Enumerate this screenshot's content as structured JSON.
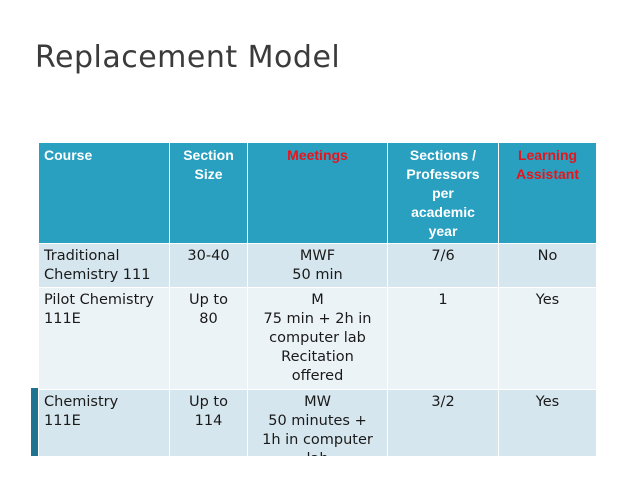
{
  "slide": {
    "title": "Replacement Model"
  },
  "colors": {
    "header_bg": "#2aa0c1",
    "header_text": "#ffffff",
    "header_highlight_text": "#e8141c",
    "row_band_dark": "#d6e6ee",
    "row_band_light": "#ecf3f7",
    "accent_bar": "#1f7391"
  },
  "table": {
    "headers": [
      {
        "lines": [
          "Course"
        ]
      },
      {
        "lines": [
          "Section",
          "Size"
        ]
      },
      {
        "lines": [
          "Meetings"
        ]
      },
      {
        "lines": [
          "Sections /",
          "Professors",
          "per",
          "academic",
          "year"
        ]
      },
      {
        "lines": [
          "Learning",
          "Assistant"
        ]
      }
    ],
    "rows": [
      {
        "course": [
          "Traditional",
          "Chemistry 111"
        ],
        "size": [
          "30-40"
        ],
        "meetings": [
          "MWF",
          "50 min"
        ],
        "sections": [
          "7/6"
        ],
        "assistant": [
          "No"
        ]
      },
      {
        "course": [
          "Pilot Chemistry",
          "111E"
        ],
        "size": [
          "Up to",
          "80"
        ],
        "meetings": [
          "M",
          "75 min + 2h in",
          "computer lab",
          "Recitation",
          "offered"
        ],
        "sections": [
          "1"
        ],
        "assistant": [
          "Yes"
        ]
      },
      {
        "course": [
          "Chemistry",
          "111E"
        ],
        "size": [
          "Up to",
          "114"
        ],
        "meetings": [
          "MW",
          "50 minutes +",
          "1h in computer",
          "lab"
        ],
        "sections": [
          "3/2"
        ],
        "assistant": [
          "Yes"
        ]
      }
    ]
  }
}
